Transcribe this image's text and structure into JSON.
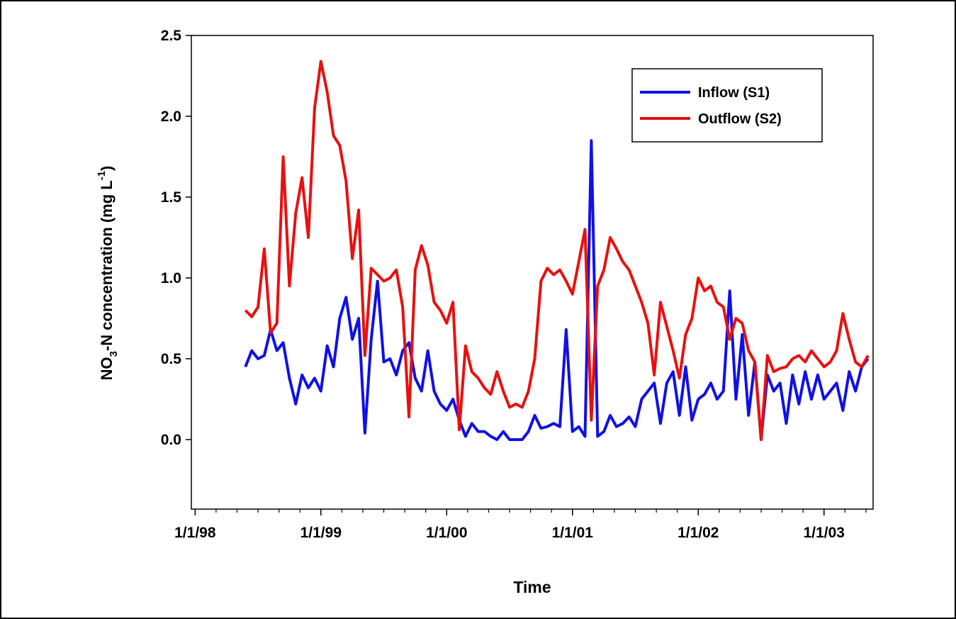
{
  "chart_data": {
    "type": "line",
    "x_label": "Time",
    "y_label": [
      "NO",
      "3",
      "-N concentration (mg L",
      "-1",
      ")"
    ],
    "legend": "upper right",
    "xlim": [
      1997.97,
      2003.39
    ],
    "xticks": [
      {
        "value": 1998,
        "label": "1/1/98"
      },
      {
        "value": 1999,
        "label": "1/1/99"
      },
      {
        "value": 2000,
        "label": "1/1/00"
      },
      {
        "value": 2001,
        "label": "1/1/01"
      },
      {
        "value": 2002,
        "label": "1/1/02"
      },
      {
        "value": 2003,
        "label": "1/1/03"
      }
    ],
    "xminorticks": [
      1998.1667,
      1998.3333,
      1998.5,
      1998.6667,
      1998.8333,
      1999.1667,
      1999.3333,
      1999.5,
      1999.6667,
      1999.8333,
      2000.1667,
      2000.3333,
      2000.5,
      2000.6667,
      2000.8333,
      2001.1667,
      2001.3333,
      2001.5,
      2001.6667,
      2001.8333,
      2002.1667,
      2002.3333,
      2002.5,
      2002.6667,
      2002.8333,
      2003.1667,
      2003.3333
    ],
    "ylim": [
      -0.43,
      2.5
    ],
    "yticks": [
      {
        "value": 0,
        "label": "0.0"
      },
      0.5,
      {
        "value": 1,
        "label": "1.0"
      },
      1.5,
      {
        "value": 2,
        "label": "2.0"
      },
      2.5
    ],
    "x": [
      1998.4,
      1998.45,
      1998.5,
      1998.55,
      1998.6,
      1998.65,
      1998.7,
      1998.75,
      1998.8,
      1998.85,
      1998.9,
      1998.95,
      1999.0,
      1999.05,
      1999.1,
      1999.15,
      1999.2,
      1999.25,
      1999.3,
      1999.35,
      1999.4,
      1999.45,
      1999.5,
      1999.55,
      1999.6,
      1999.65,
      1999.7,
      1999.75,
      1999.8,
      1999.85,
      1999.9,
      1999.95,
      2000.0,
      2000.05,
      2000.1,
      2000.15,
      2000.2,
      2000.25,
      2000.3,
      2000.35,
      2000.4,
      2000.45,
      2000.5,
      2000.55,
      2000.6,
      2000.65,
      2000.7,
      2000.75,
      2000.8,
      2000.85,
      2000.9,
      2000.95,
      2001.0,
      2001.05,
      2001.1,
      2001.15,
      2001.2,
      2001.25,
      2001.3,
      2001.35,
      2001.4,
      2001.45,
      2001.5,
      2001.55,
      2001.6,
      2001.65,
      2001.7,
      2001.75,
      2001.8,
      2001.85,
      2001.9,
      2001.95,
      2002.0,
      2002.05,
      2002.1,
      2002.15,
      2002.2,
      2002.25,
      2002.3,
      2002.35,
      2002.4,
      2002.45,
      2002.5,
      2002.55,
      2002.6,
      2002.65,
      2002.7,
      2002.75,
      2002.8,
      2002.85,
      2002.9,
      2002.95,
      2003.0,
      2003.05,
      2003.1,
      2003.15,
      2003.2,
      2003.25,
      2003.3,
      2003.35
    ],
    "series": [
      {
        "name": "Inflow (S1)",
        "color": "#1010e8",
        "values": [
          0.45,
          0.55,
          0.5,
          0.52,
          0.68,
          0.55,
          0.6,
          0.38,
          0.22,
          0.4,
          0.32,
          0.38,
          0.3,
          0.58,
          0.45,
          0.75,
          0.88,
          0.62,
          0.75,
          0.04,
          0.62,
          0.98,
          0.48,
          0.5,
          0.4,
          0.55,
          0.6,
          0.38,
          0.3,
          0.55,
          0.3,
          0.22,
          0.18,
          0.25,
          0.12,
          0.02,
          0.1,
          0.05,
          0.05,
          0.02,
          0.0,
          0.05,
          0.0,
          0.0,
          0.0,
          0.05,
          0.15,
          0.07,
          0.08,
          0.1,
          0.08,
          0.68,
          0.05,
          0.08,
          0.02,
          1.85,
          0.02,
          0.05,
          0.15,
          0.08,
          0.1,
          0.14,
          0.08,
          0.25,
          0.3,
          0.35,
          0.1,
          0.35,
          0.42,
          0.15,
          0.45,
          0.12,
          0.25,
          0.28,
          0.35,
          0.25,
          0.3,
          0.92,
          0.25,
          0.65,
          0.15,
          0.48,
          0.0,
          0.4,
          0.3,
          0.35,
          0.1,
          0.4,
          0.22,
          0.42,
          0.25,
          0.4,
          0.25,
          0.3,
          0.35,
          0.18,
          0.42,
          0.3,
          0.45,
          0.5
        ]
      },
      {
        "name": "Outflow (S2)",
        "color": "#e81010",
        "values": [
          0.8,
          0.76,
          0.82,
          1.18,
          0.66,
          0.72,
          1.75,
          0.95,
          1.4,
          1.62,
          1.25,
          2.05,
          2.34,
          2.15,
          1.88,
          1.82,
          1.6,
          1.12,
          1.42,
          0.52,
          1.06,
          1.02,
          0.98,
          1.0,
          1.05,
          0.82,
          0.14,
          1.05,
          1.2,
          1.08,
          0.85,
          0.8,
          0.72,
          0.85,
          0.06,
          0.58,
          0.42,
          0.38,
          0.32,
          0.28,
          0.42,
          0.3,
          0.2,
          0.22,
          0.2,
          0.3,
          0.5,
          0.98,
          1.06,
          1.02,
          1.05,
          0.98,
          0.9,
          1.1,
          1.3,
          0.12,
          0.95,
          1.05,
          1.25,
          1.18,
          1.1,
          1.05,
          0.95,
          0.85,
          0.72,
          0.4,
          0.85,
          0.7,
          0.55,
          0.38,
          0.65,
          0.75,
          1.0,
          0.92,
          0.95,
          0.85,
          0.82,
          0.62,
          0.75,
          0.72,
          0.55,
          0.48,
          0.0,
          0.52,
          0.42,
          0.44,
          0.45,
          0.5,
          0.52,
          0.48,
          0.55,
          0.5,
          0.45,
          0.48,
          0.55,
          0.78,
          0.62,
          0.48,
          0.45,
          0.52
        ]
      }
    ]
  }
}
